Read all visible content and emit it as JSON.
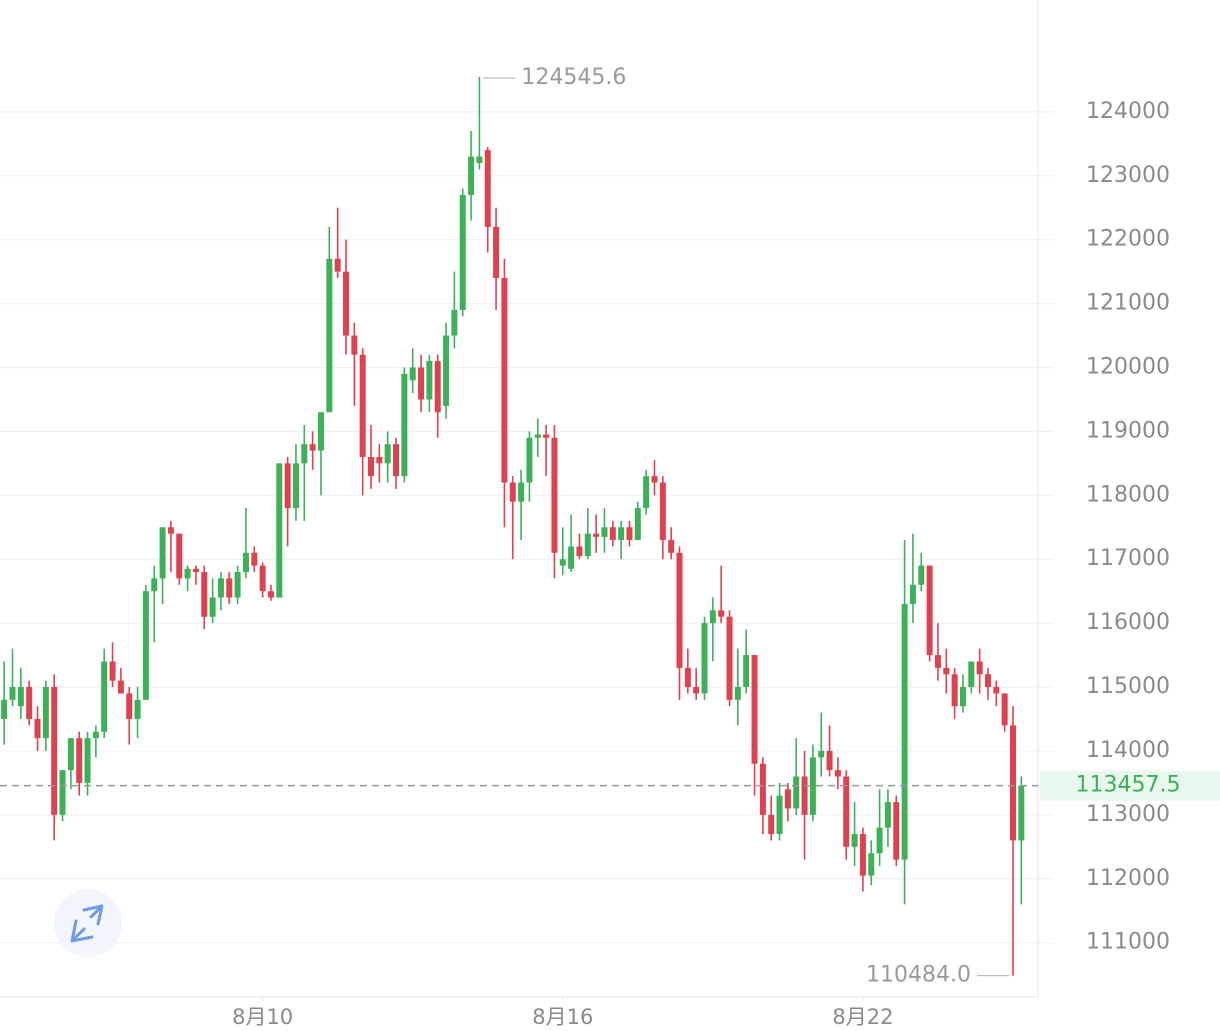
{
  "chart_data": {
    "type": "candlestick",
    "open": [
      114500,
      114800,
      114700,
      115000,
      114500,
      114200,
      115000,
      113000,
      113700,
      114200,
      113500,
      114200,
      114300,
      115400,
      115100,
      114900,
      114500,
      114800,
      116500,
      116700,
      117500,
      117400,
      116700,
      116850,
      116800,
      116100,
      116400,
      116700,
      116400,
      116800,
      117100,
      116900,
      116500,
      116400,
      118500,
      117800,
      118500,
      118800,
      118700,
      119300,
      121700,
      121500,
      120500,
      120200,
      118600,
      118600,
      118500,
      118800,
      118300,
      119800,
      120000,
      119500,
      120100,
      119400,
      120500,
      120900,
      122700,
      123200,
      123400,
      122200,
      121400,
      118200,
      117900,
      118200,
      118900,
      118950,
      118900,
      116900,
      116850,
      117200,
      117050,
      117400,
      117350,
      117500,
      117300,
      117500,
      117300,
      117800,
      118300,
      118200,
      117300,
      117100,
      115300,
      115000,
      114900,
      116000,
      116200,
      116100,
      114800,
      115000,
      115500,
      113800,
      113000,
      112700,
      113400,
      113100,
      113600,
      113000,
      113900,
      114000,
      113700,
      113600,
      112500,
      112700,
      112050,
      112400,
      112800,
      113200,
      112300,
      116300,
      116600,
      116900,
      115500,
      115300,
      115200,
      114700,
      115000,
      115400,
      115200,
      115000,
      114900,
      114400,
      112600
    ],
    "high": [
      115400,
      115600,
      115300,
      115100,
      114700,
      115100,
      115200,
      113700,
      114200,
      114300,
      114300,
      114400,
      115600,
      115700,
      115300,
      115000,
      115000,
      116600,
      116900,
      117500,
      117600,
      117400,
      116900,
      116900,
      116900,
      116700,
      116800,
      116800,
      116900,
      117800,
      117200,
      116950,
      116600,
      118500,
      118600,
      118800,
      119100,
      119000,
      119300,
      122200,
      122500,
      122000,
      120700,
      120300,
      119100,
      118800,
      119000,
      118900,
      120000,
      120300,
      120200,
      120200,
      120200,
      120700,
      121500,
      122800,
      123700,
      124545.6,
      123450,
      122500,
      121700,
      118300,
      118400,
      119000,
      119200,
      119100,
      119100,
      117500,
      117700,
      117400,
      117800,
      117700,
      117800,
      117600,
      117600,
      117600,
      117900,
      118400,
      118550,
      118300,
      117500,
      117200,
      115600,
      115300,
      116100,
      116400,
      116900,
      116200,
      115600,
      115900,
      115500,
      113900,
      113300,
      113500,
      113500,
      114200,
      114000,
      114100,
      114600,
      114400,
      113900,
      113700,
      113200,
      112800,
      112600,
      113400,
      113400,
      113300,
      117300,
      117400,
      117100,
      116900,
      116000,
      115600,
      115300,
      115200,
      115400,
      115600,
      115300,
      115100,
      114900,
      114700,
      113600
    ],
    "low": [
      114100,
      114700,
      114500,
      114400,
      114000,
      114000,
      112600,
      112900,
      113400,
      113300,
      113300,
      113900,
      114200,
      115000,
      114900,
      114100,
      114200,
      114800,
      115700,
      116300,
      116800,
      116600,
      116500,
      116600,
      115900,
      116000,
      116200,
      116300,
      116300,
      116700,
      116800,
      116400,
      116350,
      116400,
      117200,
      117600,
      117600,
      118400,
      118000,
      119300,
      121400,
      120200,
      119400,
      118000,
      118100,
      118200,
      118200,
      118100,
      118200,
      119600,
      119300,
      119300,
      118900,
      119200,
      120300,
      120800,
      122300,
      123100,
      121800,
      120900,
      117500,
      117000,
      117300,
      117900,
      118600,
      118300,
      116700,
      116750,
      116800,
      117000,
      117000,
      117100,
      117100,
      117200,
      117000,
      117200,
      117300,
      117700,
      118000,
      117000,
      117000,
      114800,
      114900,
      114800,
      114800,
      115400,
      116000,
      114700,
      114400,
      114900,
      113300,
      112700,
      112600,
      112600,
      112900,
      113000,
      112300,
      112900,
      113600,
      113600,
      113400,
      112300,
      112200,
      111800,
      111900,
      112200,
      112500,
      112200,
      111600,
      116000,
      116500,
      115400,
      115100,
      114900,
      114500,
      114600,
      114900,
      114900,
      114800,
      114700,
      114300,
      110484.0,
      111600
    ],
    "close": [
      114800,
      115000,
      115000,
      114500,
      114200,
      115000,
      113000,
      113700,
      114200,
      113500,
      114200,
      114300,
      115400,
      115100,
      114900,
      114500,
      114800,
      116500,
      116700,
      117500,
      117400,
      116700,
      116850,
      116800,
      116100,
      116400,
      116700,
      116400,
      116800,
      117100,
      116900,
      116500,
      116400,
      118500,
      117800,
      118500,
      118800,
      118700,
      119300,
      121700,
      121500,
      120500,
      120200,
      118600,
      118300,
      118500,
      118800,
      118300,
      119900,
      120000,
      119500,
      120100,
      119300,
      120500,
      120900,
      122700,
      123300,
      123300,
      122200,
      121400,
      118200,
      117900,
      118200,
      118900,
      118950,
      118900,
      117100,
      117000,
      117200,
      117050,
      117400,
      117350,
      117500,
      117300,
      117500,
      117300,
      117800,
      118300,
      118200,
      117300,
      117100,
      115300,
      115000,
      114900,
      116000,
      116200,
      116100,
      114800,
      115000,
      115500,
      113800,
      113000,
      112700,
      113300,
      113100,
      113600,
      113000,
      113900,
      114000,
      113700,
      113600,
      112500,
      112700,
      112050,
      112400,
      112800,
      113200,
      112300,
      116300,
      116600,
      116900,
      115500,
      115300,
      115200,
      114700,
      115000,
      115400,
      115200,
      115000,
      114900,
      114400,
      112600,
      113457.5
    ],
    "up_color": "#3bb158",
    "down_color": "#e0404f",
    "xlim": [
      -0.5,
      124
    ],
    "xticks": [
      {
        "value": 31,
        "label": "8月10"
      },
      {
        "value": 67,
        "label": "8月16"
      },
      {
        "value": 103,
        "label": "8月22"
      }
    ],
    "ylim": [
      110150,
      125750
    ],
    "yticks": [
      111000,
      112000,
      113000,
      114000,
      115000,
      116000,
      117000,
      118000,
      119000,
      120000,
      121000,
      122000,
      123000,
      124000
    ],
    "grid": true,
    "last_price": 113457.5,
    "max_label": 124545.6,
    "min_label": {
      "value": 110484.0,
      "label": "110484.0"
    }
  }
}
